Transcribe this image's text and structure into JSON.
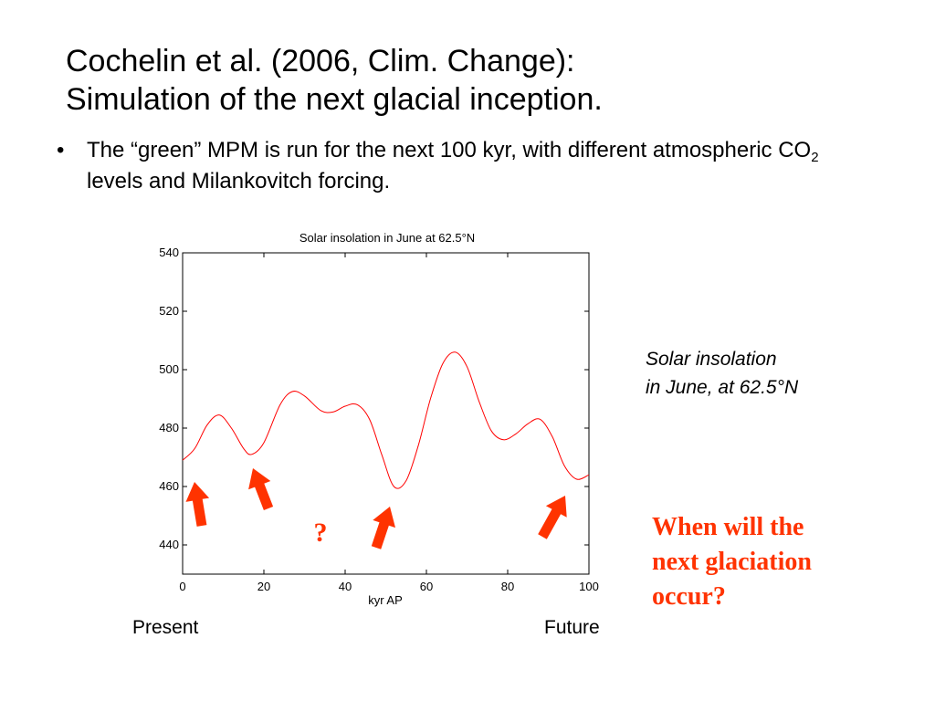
{
  "slide": {
    "title_lines": [
      "Cochelin et al. (2006, Clim. Change):",
      "Simulation of the next glacial inception."
    ],
    "bullet": {
      "marker": "•",
      "text_before_sub": "The “green” MPM is run for the next 100 kyr, with different atmospheric CO",
      "subscript": "2",
      "text_after_sub": " levels and Milankovitch forcing."
    },
    "caption_lines": [
      "Solar insolation",
      "in June, at 62.5°N"
    ],
    "question_lines": [
      "When will the",
      "next glaciation",
      "occur?"
    ],
    "present_label": "Present",
    "future_label": "Future",
    "arrow_question_mark": "?",
    "annotation_color": "#ff3300"
  },
  "chart_data": {
    "type": "line",
    "title": "Solar insolation in June at 62.5°N",
    "xlabel": "kyr AP",
    "ylabel": "",
    "xlim": [
      0,
      100
    ],
    "ylim": [
      430,
      540
    ],
    "xticks": [
      0,
      20,
      40,
      60,
      80,
      100
    ],
    "yticks": [
      440,
      460,
      480,
      500,
      520,
      540
    ],
    "grid": false,
    "line_color": "#ff0000",
    "series": [
      {
        "x": [
          0,
          3,
          6,
          9,
          12,
          15,
          17,
          20,
          24,
          27,
          30,
          34,
          37,
          40,
          43,
          46,
          49,
          52,
          55,
          58,
          61,
          64,
          67,
          70,
          73,
          76,
          79,
          82,
          85,
          88,
          91,
          94,
          97,
          100
        ],
        "values": [
          469,
          473,
          481,
          484.5,
          480,
          473,
          471,
          475,
          488,
          492.5,
          491,
          486,
          485.5,
          487.5,
          488,
          483,
          471,
          460,
          462,
          474,
          490,
          502,
          506,
          501,
          489,
          479,
          476,
          478,
          481.5,
          483,
          477,
          467,
          462.5,
          464
        ]
      }
    ],
    "arrows_at_kyr": [
      4,
      20,
      50,
      95
    ]
  }
}
